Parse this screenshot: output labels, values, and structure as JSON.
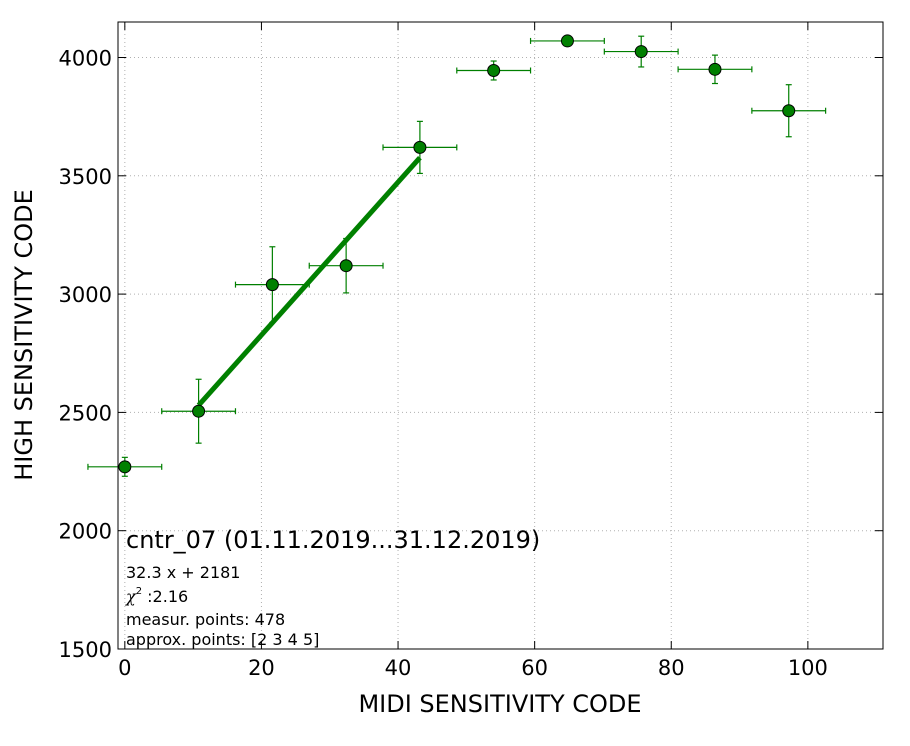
{
  "chart_data": {
    "type": "scatter",
    "xlabel": "MIDI SENSITIVITY CODE",
    "ylabel": "HIGH SENSITIVITY CODE",
    "xlim": [
      -1,
      111
    ],
    "ylim": [
      1500,
      4150
    ],
    "xticks": [
      0,
      20,
      40,
      60,
      80,
      100
    ],
    "yticks": [
      1500,
      2000,
      2500,
      3000,
      3500,
      4000
    ],
    "grid": true,
    "colors": {
      "series": "#007f00",
      "marker": "#008000",
      "line": "#008000"
    },
    "points": [
      {
        "x": 0.0,
        "y": 2270,
        "xerr": 5.4,
        "yerr": 40
      },
      {
        "x": 10.8,
        "y": 2505,
        "xerr": 5.4,
        "yerr": 135
      },
      {
        "x": 21.6,
        "y": 3040,
        "xerr": 5.4,
        "yerr": 160
      },
      {
        "x": 32.4,
        "y": 3120,
        "xerr": 5.4,
        "yerr": 115
      },
      {
        "x": 43.2,
        "y": 3620,
        "xerr": 5.4,
        "yerr": 110
      },
      {
        "x": 54.0,
        "y": 3945,
        "xerr": 5.4,
        "yerr": 40
      },
      {
        "x": 64.8,
        "y": 4070,
        "xerr": 5.4,
        "yerr": 0
      },
      {
        "x": 75.6,
        "y": 4025,
        "xerr": 5.4,
        "yerr": 65
      },
      {
        "x": 86.4,
        "y": 3950,
        "xerr": 5.4,
        "yerr": 60
      },
      {
        "x": 97.2,
        "y": 3775,
        "xerr": 5.4,
        "yerr": 110
      }
    ],
    "fit_line": {
      "slope": 32.3,
      "intercept": 2181,
      "x_range": [
        10.8,
        43.2
      ]
    },
    "annotations": {
      "title": "cntr_07 (01.11.2019...31.12.2019)",
      "equation": "32.3 x + 2181",
      "chi_symbol": "χ",
      "chi_power": "2",
      "chi_value": " :2.16",
      "measur_points": "measur. points: 478",
      "approx_points": "approx. points: [2 3 4 5]"
    }
  }
}
